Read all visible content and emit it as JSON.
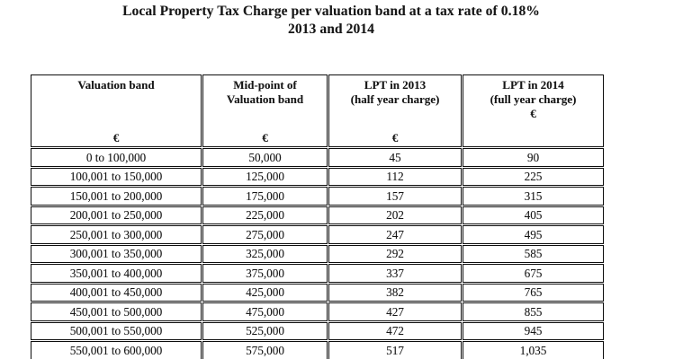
{
  "title": {
    "line1": "Local Property Tax Charge per valuation band at a tax rate of 0.18%",
    "line2": "2013 and 2014"
  },
  "table": {
    "header": {
      "col1": {
        "line1": "Valuation band",
        "unit": "€"
      },
      "col2": {
        "line1": "Mid-point of",
        "line2": "Valuation band",
        "unit": "€"
      },
      "col3": {
        "line1": "LPT in 2013",
        "line2": "(half year charge)",
        "unit": "€"
      },
      "col4": {
        "line1": "LPT in 2014",
        "line2": "(full year charge)",
        "unit": "€"
      }
    },
    "rows": [
      [
        "0 to 100,000",
        "50,000",
        "45",
        "90"
      ],
      [
        "100,001 to 150,000",
        "125,000",
        "112",
        "225"
      ],
      [
        "150,001 to 200,000",
        "175,000",
        "157",
        "315"
      ],
      [
        "200,001 to 250,000",
        "225,000",
        "202",
        "405"
      ],
      [
        "250,001 to 300,000",
        "275,000",
        "247",
        "495"
      ],
      [
        "300,001 to 350,000",
        "325,000",
        "292",
        "585"
      ],
      [
        "350,001 to 400,000",
        "375,000",
        "337",
        "675"
      ],
      [
        "400,001 to 450,000",
        "425,000",
        "382",
        "765"
      ],
      [
        "450,001 to 500,000",
        "475,000",
        "427",
        "855"
      ],
      [
        "500,001 to 550,000",
        "525,000",
        "472",
        "945"
      ],
      [
        "550,001 to 600,000",
        "575,000",
        "517",
        "1,035"
      ]
    ]
  }
}
